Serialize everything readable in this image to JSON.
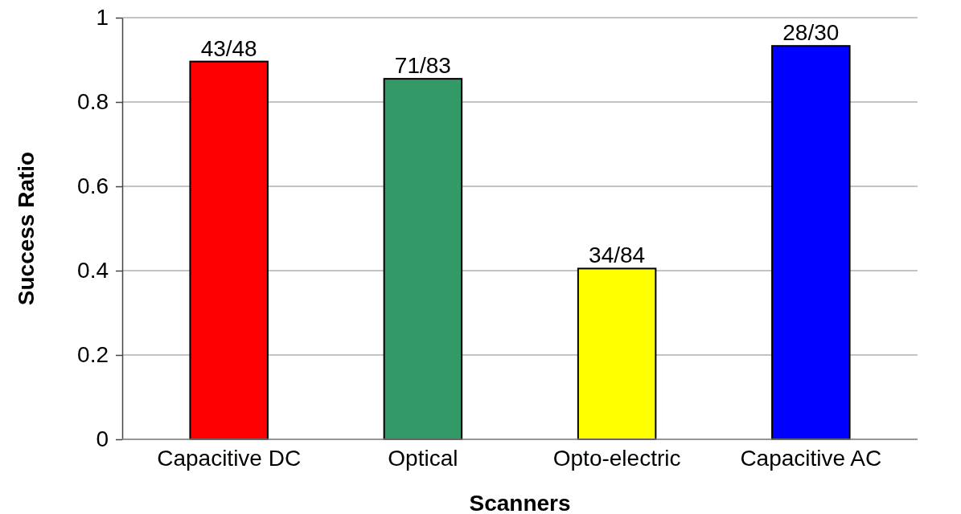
{
  "chart_data": {
    "type": "bar",
    "xlabel": "Scanners",
    "ylabel": "Success Ratio",
    "categories": [
      "Capacitive DC",
      "Optical",
      "Opto-electric",
      "Capacitive AC"
    ],
    "values": [
      0.896,
      0.855,
      0.405,
      0.933
    ],
    "colors": [
      "#ff0000",
      "#339966",
      "#ffff00",
      "#0000ff"
    ],
    "value_labels": [
      "43/48",
      "71/83",
      "34/84",
      "28/30"
    ],
    "ylim": [
      0,
      1
    ],
    "yticks": [
      0,
      0.2,
      0.4,
      0.6,
      0.8,
      1
    ],
    "grid": "y"
  }
}
